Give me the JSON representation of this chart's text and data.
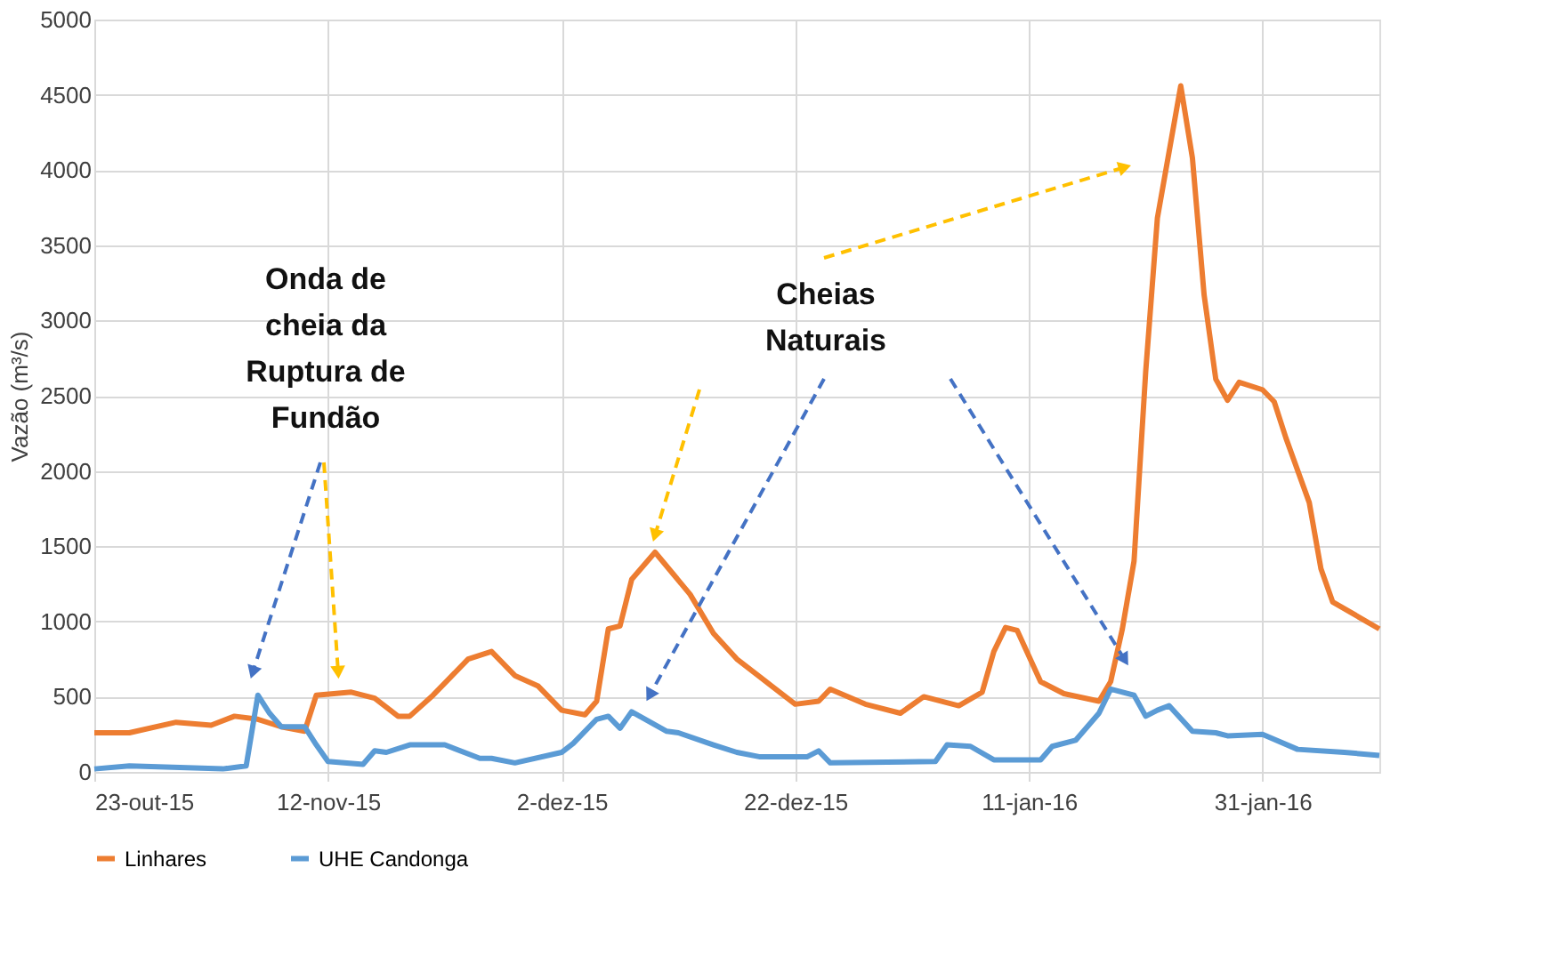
{
  "chart_data": {
    "type": "line",
    "ylabel": "Vazão (m³/s)",
    "xlim": [
      "2015-10-23",
      "2016-02-10"
    ],
    "xticks": [
      {
        "value": "2015-10-23",
        "label": "23-out-15"
      },
      {
        "value": "2015-11-12",
        "label": "12-nov-15"
      },
      {
        "value": "2015-12-02",
        "label": "2-dez-15"
      },
      {
        "value": "2015-12-22",
        "label": "22-dez-15"
      },
      {
        "value": "2016-01-11",
        "label": "11-jan-16"
      },
      {
        "value": "2016-01-31",
        "label": "31-jan-16"
      }
    ],
    "ylim": [
      0,
      5000
    ],
    "yticks": [
      0,
      500,
      {
        "value": 1000,
        "label": "1000"
      },
      {
        "value": 1500,
        "label": "1500"
      },
      {
        "value": 2000,
        "label": "2000"
      },
      {
        "value": 2500,
        "label": "2500"
      },
      {
        "value": 3000,
        "label": "3000"
      },
      {
        "value": 3500,
        "label": "3500"
      },
      {
        "value": 4000,
        "label": "4000"
      },
      {
        "value": 4500,
        "label": "4500"
      },
      {
        "value": 5000,
        "label": "5000"
      }
    ],
    "grid": true,
    "legend": "bottom",
    "marker": "none",
    "line_style": "solid",
    "annotations": [
      "Onda de cheia da Ruptura de Fundão",
      "Cheias Naturais"
    ],
    "series": [
      {
        "name": "Linhares",
        "color": "#ed7d31",
        "x": [
          "2015-10-23",
          "2015-10-26",
          "2015-10-30",
          "2015-11-02",
          "2015-11-04",
          "2015-11-06",
          "2015-11-08",
          "2015-11-10",
          "2015-11-11",
          "2015-11-14",
          "2015-11-16",
          "2015-11-18",
          "2015-11-19",
          "2015-11-21",
          "2015-11-24",
          "2015-11-26",
          "2015-11-28",
          "2015-11-30",
          "2015-12-02",
          "2015-12-04",
          "2015-12-05",
          "2015-12-06",
          "2015-12-07",
          "2015-12-08",
          "2015-12-10",
          "2015-12-13",
          "2015-12-15",
          "2015-12-17",
          "2015-12-20",
          "2015-12-22",
          "2015-12-24",
          "2015-12-25",
          "2015-12-28",
          "2015-12-31",
          "2016-01-02",
          "2016-01-05",
          "2016-01-07",
          "2016-01-08",
          "2016-01-09",
          "2016-01-10",
          "2016-01-12",
          "2016-01-14",
          "2016-01-17",
          "2016-01-18",
          "2016-01-19",
          "2016-01-20",
          "2016-01-21",
          "2016-01-22",
          "2016-01-24",
          "2016-01-25",
          "2016-01-26",
          "2016-01-27",
          "2016-01-28",
          "2016-01-29",
          "2016-01-31",
          "2016-02-01",
          "2016-02-02",
          "2016-02-04",
          "2016-02-05",
          "2016-02-06",
          "2016-02-10"
        ],
        "values": [
          260,
          260,
          330,
          310,
          370,
          350,
          300,
          270,
          510,
          530,
          490,
          370,
          370,
          510,
          750,
          800,
          640,
          570,
          410,
          380,
          470,
          950,
          970,
          1280,
          1460,
          1180,
          920,
          750,
          570,
          450,
          470,
          550,
          450,
          390,
          500,
          440,
          530,
          800,
          960,
          940,
          600,
          520,
          470,
          600,
          950,
          1400,
          2660,
          3680,
          4560,
          4080,
          3170,
          2610,
          2470,
          2590,
          2540,
          2460,
          2220,
          1790,
          1350,
          1130,
          950
        ]
      },
      {
        "name": "UHE Candonga",
        "color": "#5b9bd5",
        "x": [
          "2015-10-23",
          "2015-10-26",
          "2015-11-03",
          "2015-11-05",
          "2015-11-06",
          "2015-11-07",
          "2015-11-08",
          "2015-11-10",
          "2015-11-11",
          "2015-11-12",
          "2015-11-15",
          "2015-11-16",
          "2015-11-17",
          "2015-11-19",
          "2015-11-22",
          "2015-11-25",
          "2015-11-26",
          "2015-11-28",
          "2015-12-02",
          "2015-12-03",
          "2015-12-05",
          "2015-12-06",
          "2015-12-07",
          "2015-12-08",
          "2015-12-11",
          "2015-12-12",
          "2015-12-15",
          "2015-12-17",
          "2015-12-19",
          "2015-12-23",
          "2015-12-24",
          "2015-12-25",
          "2016-01-03",
          "2016-01-04",
          "2016-01-06",
          "2016-01-08",
          "2016-01-12",
          "2016-01-13",
          "2016-01-15",
          "2016-01-17",
          "2016-01-18",
          "2016-01-20",
          "2016-01-21",
          "2016-01-22",
          "2016-01-23",
          "2016-01-25",
          "2016-01-27",
          "2016-01-28",
          "2016-01-31",
          "2016-02-03",
          "2016-02-07",
          "2016-02-10"
        ],
        "values": [
          20,
          40,
          20,
          40,
          510,
          390,
          300,
          300,
          180,
          70,
          50,
          140,
          130,
          180,
          180,
          90,
          90,
          60,
          130,
          190,
          350,
          370,
          290,
          400,
          270,
          260,
          180,
          130,
          100,
          100,
          140,
          60,
          70,
          180,
          170,
          80,
          80,
          170,
          210,
          390,
          550,
          510,
          370,
          410,
          440,
          270,
          260,
          240,
          250,
          150,
          130,
          110
        ]
      }
    ]
  }
}
